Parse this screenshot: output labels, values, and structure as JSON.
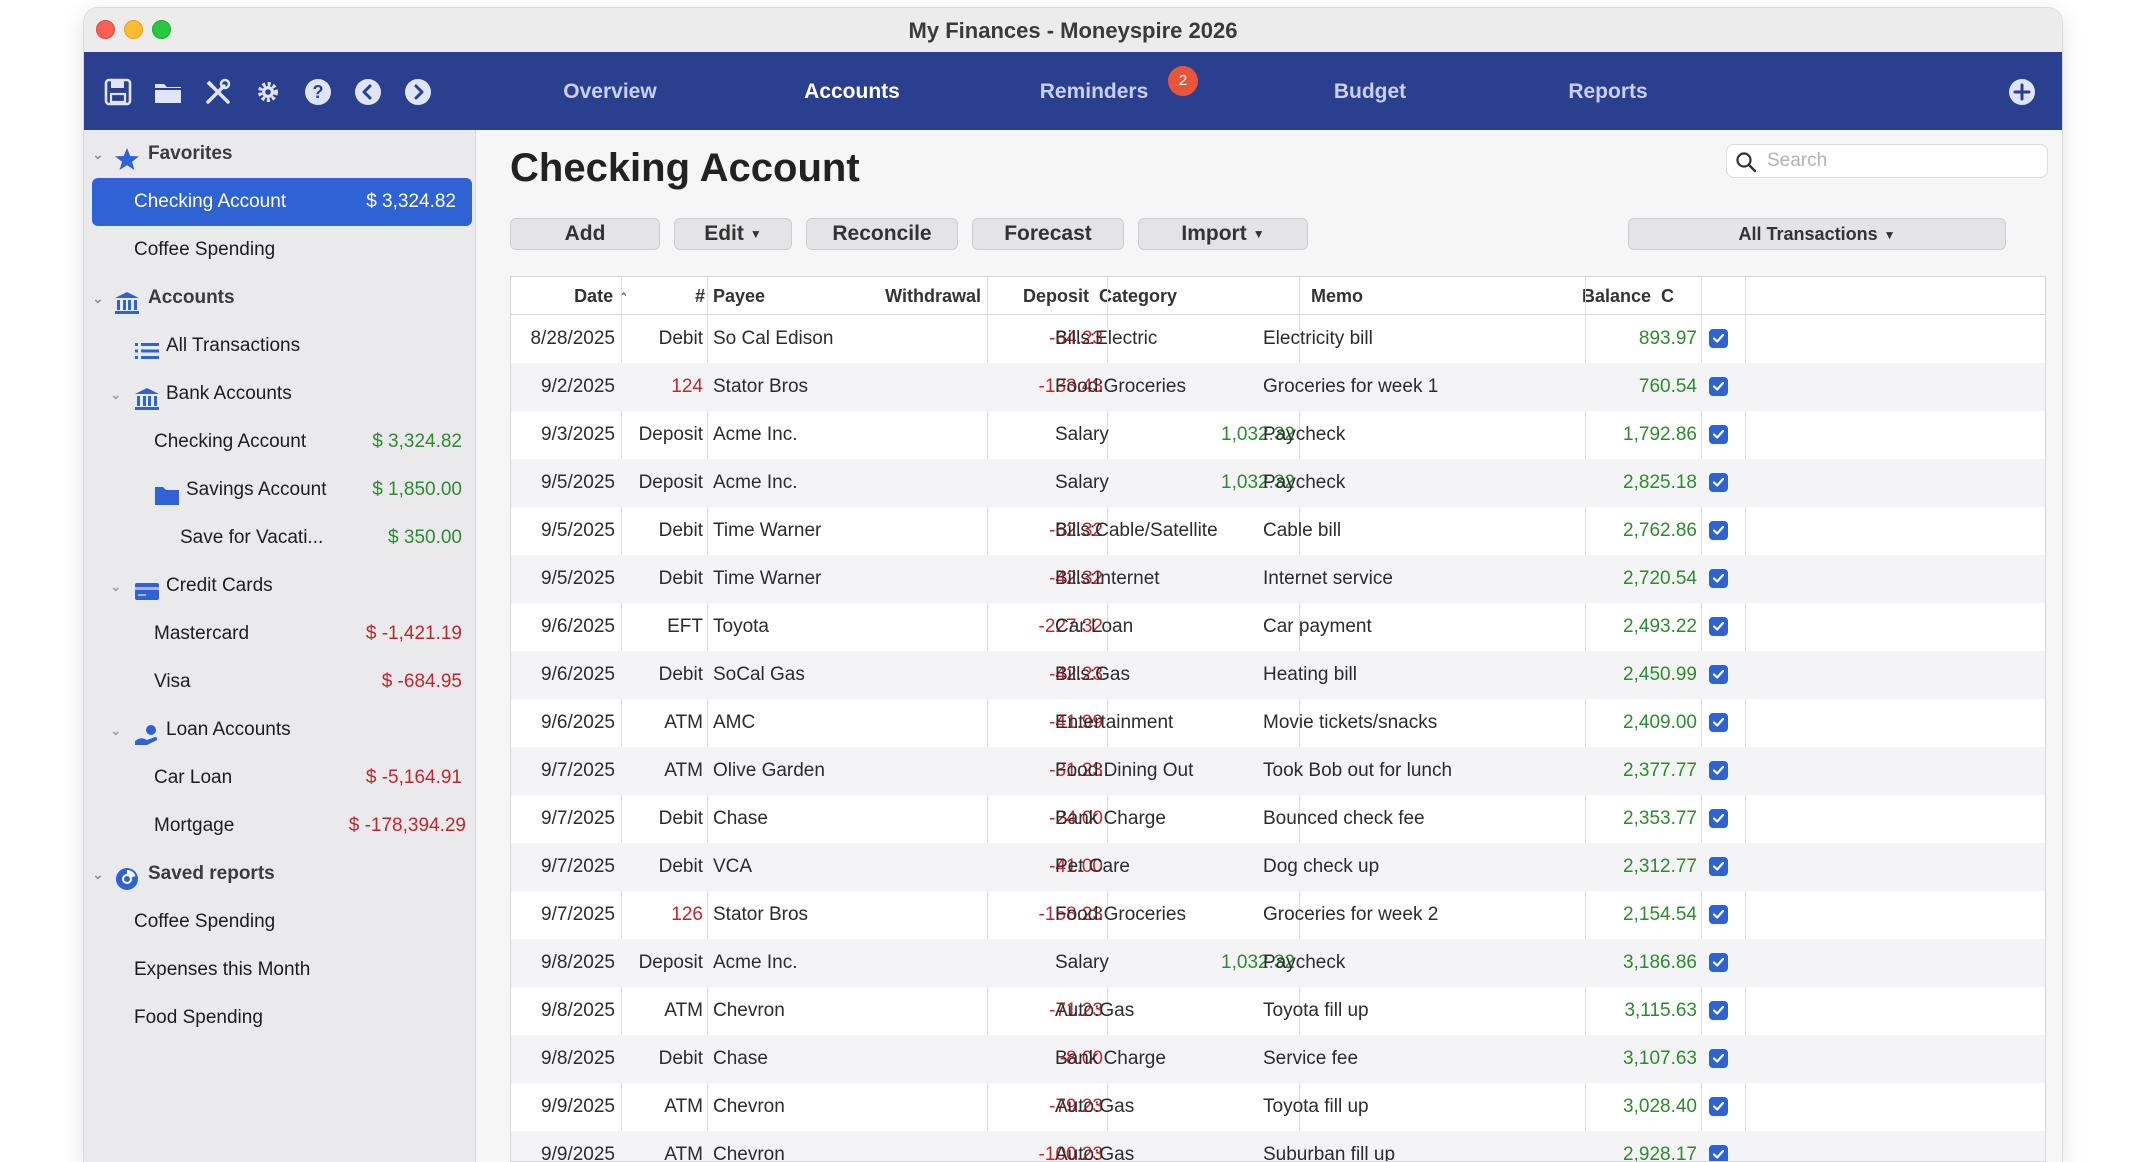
{
  "window": {
    "title": "My Finances - Moneyspire 2026"
  },
  "toolbar": {
    "icons": [
      "save-icon",
      "folder-icon",
      "tools-icon",
      "gear-icon",
      "help-icon",
      "back-icon",
      "forward-icon"
    ],
    "tabs": [
      {
        "label": "Overview"
      },
      {
        "label": "Accounts",
        "active": true
      },
      {
        "label": "Reminders",
        "badge": "2"
      },
      {
        "label": "Budget"
      },
      {
        "label": "Reports"
      }
    ],
    "add_icon": "plus-circle-icon"
  },
  "sidebar": {
    "favorites_label": "Favorites",
    "fav_checking": {
      "label": "Checking Account",
      "amount": "$ 3,324.82"
    },
    "fav_coffee": "Coffee Spending",
    "accounts_label": "Accounts",
    "all_transactions": "All Transactions",
    "bank_accounts_label": "Bank Accounts",
    "checking": {
      "label": "Checking Account",
      "amount": "$ 3,324.82"
    },
    "savings": {
      "label": "Savings Account",
      "amount": "$ 1,850.00"
    },
    "vacation": {
      "label": "Save for Vacati...",
      "amount": "$ 350.00"
    },
    "credit_cards_label": "Credit Cards",
    "mastercard": {
      "label": "Mastercard",
      "amount": "$ -1,421.19"
    },
    "visa": {
      "label": "Visa",
      "amount": "$ -684.95"
    },
    "loan_accounts_label": "Loan Accounts",
    "car_loan": {
      "label": "Car Loan",
      "amount": "$ -5,164.91"
    },
    "mortgage": {
      "label": "Mortgage",
      "amount": "$ -178,394.29"
    },
    "saved_reports_label": "Saved reports",
    "report_coffee": "Coffee Spending",
    "report_expenses": "Expenses this Month",
    "report_food": "Food Spending"
  },
  "main": {
    "title": "Checking Account",
    "search_placeholder": "Search",
    "buttons": {
      "add": "Add",
      "edit": "Edit",
      "reconcile": "Reconcile",
      "forecast": "Forecast",
      "import": "Import"
    },
    "filter": "All Transactions"
  },
  "table": {
    "headers": {
      "date": "Date",
      "num": "#",
      "payee": "Payee",
      "withdrawal": "Withdrawal",
      "deposit": "Deposit",
      "category": "Category",
      "memo": "Memo",
      "balance": "Balance",
      "cleared": "C"
    },
    "rows": [
      {
        "date": "8/28/2025",
        "num": "Debit",
        "payee": "So Cal Edison",
        "withdrawal": "-64.23",
        "deposit": "",
        "category": "Bills:Electric",
        "memo": "Electricity bill",
        "balance": "893.97",
        "cleared": true
      },
      {
        "date": "9/2/2025",
        "num": "124",
        "payee": "Stator Bros",
        "withdrawal": "-133.43",
        "deposit": "",
        "category": "Food:Groceries",
        "memo": "Groceries for week 1",
        "balance": "760.54",
        "cleared": true
      },
      {
        "date": "9/3/2025",
        "num": "Deposit",
        "payee": "Acme Inc.",
        "withdrawal": "",
        "deposit": "1,032.32",
        "category": "Salary",
        "memo": "Paycheck",
        "balance": "1,792.86",
        "cleared": true
      },
      {
        "date": "9/5/2025",
        "num": "Deposit",
        "payee": "Acme Inc.",
        "withdrawal": "",
        "deposit": "1,032.32",
        "category": "Salary",
        "memo": "Paycheck",
        "balance": "2,825.18",
        "cleared": true
      },
      {
        "date": "9/5/2025",
        "num": "Debit",
        "payee": "Time Warner",
        "withdrawal": "-62.32",
        "deposit": "",
        "category": "Bills:Cable/Satellite",
        "memo": "Cable bill",
        "balance": "2,762.86",
        "cleared": true
      },
      {
        "date": "9/5/2025",
        "num": "Debit",
        "payee": "Time Warner",
        "withdrawal": "-42.32",
        "deposit": "",
        "category": "Bills:Internet",
        "memo": "Internet service",
        "balance": "2,720.54",
        "cleared": true
      },
      {
        "date": "9/6/2025",
        "num": "EFT",
        "payee": "Toyota",
        "withdrawal": "-227.32",
        "deposit": "",
        "category": "Car Loan",
        "memo": "Car payment",
        "balance": "2,493.22",
        "cleared": true
      },
      {
        "date": "9/6/2025",
        "num": "Debit",
        "payee": "SoCal Gas",
        "withdrawal": "-42.23",
        "deposit": "",
        "category": "Bills:Gas",
        "memo": "Heating bill",
        "balance": "2,450.99",
        "cleared": true
      },
      {
        "date": "9/6/2025",
        "num": "ATM",
        "payee": "AMC",
        "withdrawal": "-41.99",
        "deposit": "",
        "category": "Entertainment",
        "memo": "Movie tickets/snacks",
        "balance": "2,409.00",
        "cleared": true
      },
      {
        "date": "9/7/2025",
        "num": "ATM",
        "payee": "Olive Garden",
        "withdrawal": "-31.23",
        "deposit": "",
        "category": "Food:Dining Out",
        "memo": "Took Bob out for lunch",
        "balance": "2,377.77",
        "cleared": true
      },
      {
        "date": "9/7/2025",
        "num": "Debit",
        "payee": "Chase",
        "withdrawal": "-24.00",
        "deposit": "",
        "category": "Bank Charge",
        "memo": "Bounced check fee",
        "balance": "2,353.77",
        "cleared": true
      },
      {
        "date": "9/7/2025",
        "num": "Debit",
        "payee": "VCA",
        "withdrawal": "-41.00",
        "deposit": "",
        "category": "Pet Care",
        "memo": "Dog check up",
        "balance": "2,312.77",
        "cleared": true
      },
      {
        "date": "9/7/2025",
        "num": "126",
        "payee": "Stator Bros",
        "withdrawal": "-158.23",
        "deposit": "",
        "category": "Food:Groceries",
        "memo": "Groceries for week 2",
        "balance": "2,154.54",
        "cleared": true
      },
      {
        "date": "9/8/2025",
        "num": "Deposit",
        "payee": "Acme Inc.",
        "withdrawal": "",
        "deposit": "1,032.32",
        "category": "Salary",
        "memo": "Paycheck",
        "balance": "3,186.86",
        "cleared": true
      },
      {
        "date": "9/8/2025",
        "num": "ATM",
        "payee": "Chevron",
        "withdrawal": "-71.23",
        "deposit": "",
        "category": "Auto:Gas",
        "memo": "Toyota fill up",
        "balance": "3,115.63",
        "cleared": true
      },
      {
        "date": "9/8/2025",
        "num": "Debit",
        "payee": "Chase",
        "withdrawal": "-8.00",
        "deposit": "",
        "category": "Bank Charge",
        "memo": "Service fee",
        "balance": "3,107.63",
        "cleared": true
      },
      {
        "date": "9/9/2025",
        "num": "ATM",
        "payee": "Chevron",
        "withdrawal": "-79.23",
        "deposit": "",
        "category": "Auto:Gas",
        "memo": "Toyota fill up",
        "balance": "3,028.40",
        "cleared": true
      },
      {
        "date": "9/9/2025",
        "num": "ATM",
        "payee": "Chevron",
        "withdrawal": "-100.23",
        "deposit": "",
        "category": "Auto:Gas",
        "memo": "Suburban fill up",
        "balance": "2,928.17",
        "cleared": true
      }
    ]
  },
  "colors": {
    "toolbar": "#2b3f8f",
    "selection": "#2f62d4",
    "positive": "#2d8a2d",
    "negative": "#c0272d",
    "badge": "#e8553a"
  }
}
